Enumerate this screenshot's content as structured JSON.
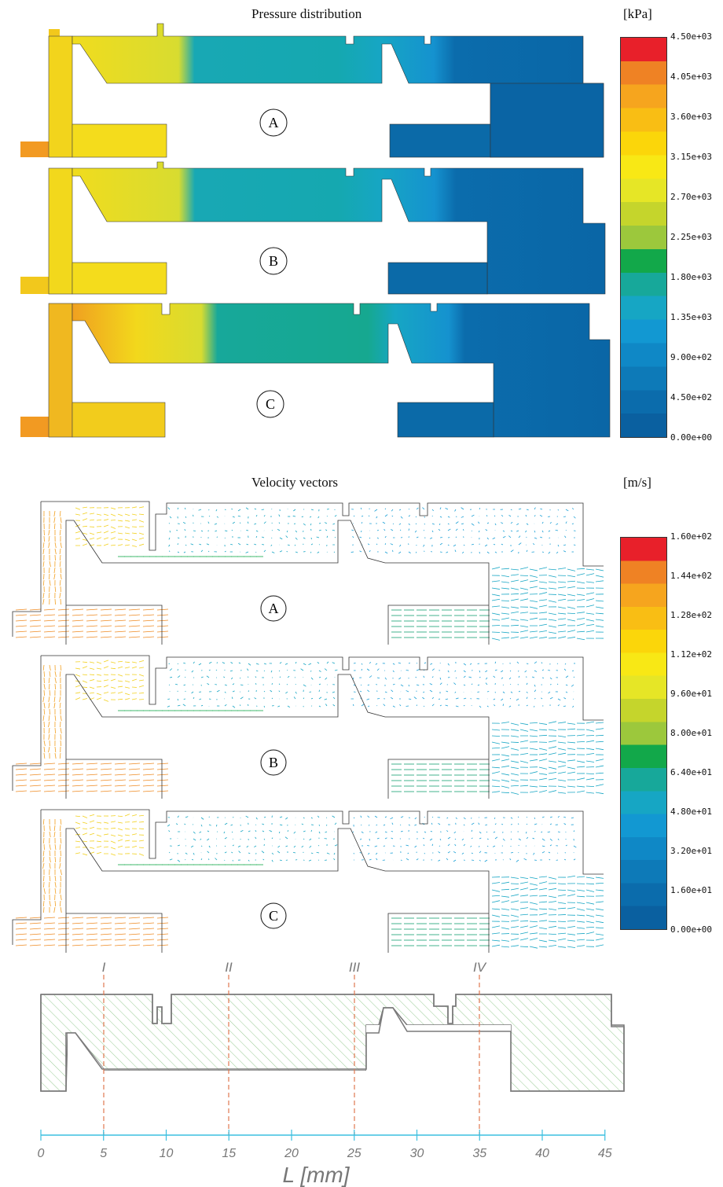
{
  "pressure": {
    "title": "Pressure distribution",
    "unit": "[kPa]",
    "ticks": [
      "4.50e+03",
      "4.05e+03",
      "3.60e+03",
      "3.15e+03",
      "2.70e+03",
      "2.25e+03",
      "1.80e+03",
      "1.35e+03",
      "9.00e+02",
      "4.50e+02",
      "0.00e+00"
    ],
    "variants": [
      "A",
      "B",
      "C"
    ]
  },
  "velocity": {
    "title": "Velocity vectors",
    "unit": "[m/s]",
    "ticks": [
      "1.60e+02",
      "1.44e+02",
      "1.28e+02",
      "1.12e+02",
      "9.60e+01",
      "8.00e+01",
      "6.40e+01",
      "4.80e+01",
      "3.20e+01",
      "1.60e+01",
      "0.00e+00"
    ],
    "variants": [
      "A",
      "B",
      "C"
    ]
  },
  "colormap": [
    "#e8202a",
    "#ef8224",
    "#f6a51e",
    "#f9be14",
    "#fbd60a",
    "#f8e815",
    "#e6e626",
    "#c5d52c",
    "#9cc83c",
    "#12a84a",
    "#17a89a",
    "#16a6c4",
    "#1298d2",
    "#0f88c6",
    "#0d7ab8",
    "#0b6cac",
    "#0a60a0"
  ],
  "profile": {
    "sections": [
      "I",
      "II",
      "III",
      "IV"
    ],
    "axis_ticks": [
      "0",
      "5",
      "10",
      "15",
      "20",
      "25",
      "30",
      "35",
      "40",
      "45"
    ],
    "axis_label": "L [mm]"
  }
}
